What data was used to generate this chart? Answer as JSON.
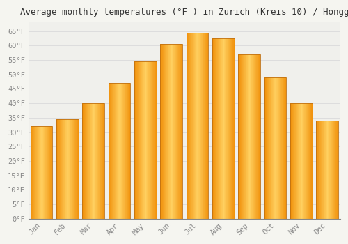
{
  "title": "Average monthly temperatures (°F ) in Zürich (Kreis 10) / Höngg",
  "months": [
    "Jan",
    "Feb",
    "Mar",
    "Apr",
    "May",
    "Jun",
    "Jul",
    "Aug",
    "Sep",
    "Oct",
    "Nov",
    "Dec"
  ],
  "values": [
    32,
    34.5,
    40,
    47,
    54.5,
    60.5,
    64.5,
    62.5,
    57,
    49,
    40,
    34
  ],
  "bar_color_center": "#FFD060",
  "bar_color_edge": "#F0900A",
  "background_color": "#F5F5F0",
  "plot_bg_color": "#F0F0EC",
  "grid_color": "#DDDDDD",
  "ylim": [
    0,
    68
  ],
  "yticks": [
    0,
    5,
    10,
    15,
    20,
    25,
    30,
    35,
    40,
    45,
    50,
    55,
    60,
    65
  ],
  "ytick_labels": [
    "0°F",
    "5°F",
    "10°F",
    "15°F",
    "20°F",
    "25°F",
    "30°F",
    "35°F",
    "40°F",
    "45°F",
    "50°F",
    "55°F",
    "60°F",
    "65°F"
  ],
  "title_fontsize": 9,
  "tick_fontsize": 7.5,
  "figsize": [
    5.0,
    3.5
  ],
  "dpi": 100,
  "bar_width": 0.85
}
